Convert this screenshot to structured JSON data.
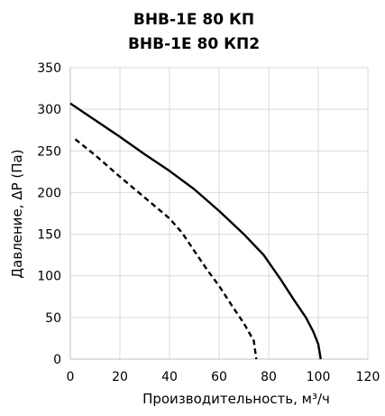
{
  "chart_data": {
    "type": "line",
    "title_lines": [
      "ВНВ-1Е 80 КП",
      "ВНВ-1Е 80 КП2"
    ],
    "xlabel": "Производительность, м³/ч",
    "ylabel": "Давление, ΔР (Па)",
    "xlim": [
      0,
      120
    ],
    "ylim": [
      0,
      350
    ],
    "x_ticks": [
      0,
      20,
      40,
      60,
      80,
      100,
      120
    ],
    "y_ticks": [
      0,
      50,
      100,
      150,
      200,
      250,
      300,
      350
    ],
    "grid": true,
    "series": [
      {
        "style": "solid",
        "color": "#000000",
        "points": [
          [
            0,
            307
          ],
          [
            10,
            287
          ],
          [
            20,
            267
          ],
          [
            30,
            246
          ],
          [
            40,
            226
          ],
          [
            50,
            204
          ],
          [
            60,
            178
          ],
          [
            70,
            150
          ],
          [
            78,
            125
          ],
          [
            85,
            95
          ],
          [
            90,
            72
          ],
          [
            95,
            50
          ],
          [
            98,
            33
          ],
          [
            100,
            18
          ],
          [
            101,
            0
          ]
        ]
      },
      {
        "style": "dashed",
        "color": "#000000",
        "points": [
          [
            2,
            264
          ],
          [
            10,
            245
          ],
          [
            20,
            219
          ],
          [
            30,
            194
          ],
          [
            40,
            169
          ],
          [
            45,
            152
          ],
          [
            50,
            130
          ],
          [
            55,
            108
          ],
          [
            60,
            88
          ],
          [
            65,
            65
          ],
          [
            70,
            43
          ],
          [
            74,
            22
          ],
          [
            75,
            0
          ]
        ]
      }
    ]
  }
}
